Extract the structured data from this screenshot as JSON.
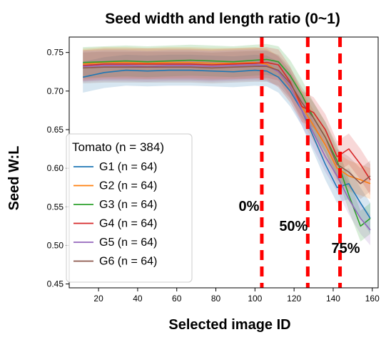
{
  "chart_data": {
    "type": "line",
    "title": "Seed width and length ratio (0~1)",
    "xlabel": "Selected image ID",
    "ylabel": "Seed W:L",
    "xlim": [
      5,
      163
    ],
    "ylim": [
      0.445,
      0.77
    ],
    "xticks": [
      20,
      40,
      60,
      80,
      100,
      120,
      140,
      160
    ],
    "yticks": [
      0.45,
      0.5,
      0.55,
      0.6,
      0.65,
      0.7,
      0.75
    ],
    "legend_title": "Tomato (n = 384)",
    "legend_position": "lower-left",
    "x": [
      12,
      23,
      34,
      45,
      56,
      67,
      78,
      89,
      100,
      106,
      112,
      118,
      124,
      130,
      136,
      142,
      148,
      154,
      159
    ],
    "series": [
      {
        "name": "G1 (n = 64)",
        "color": "#1f77b4",
        "values": [
          0.718,
          0.724,
          0.727,
          0.726,
          0.727,
          0.727,
          0.726,
          0.725,
          0.727,
          0.726,
          0.718,
          0.7,
          0.675,
          0.64,
          0.605,
          0.575,
          0.58,
          0.555,
          0.535
        ],
        "band": 0.02
      },
      {
        "name": "G2 (n = 64)",
        "color": "#ff7f0e",
        "values": [
          0.735,
          0.737,
          0.737,
          0.736,
          0.737,
          0.737,
          0.736,
          0.736,
          0.737,
          0.735,
          0.725,
          0.705,
          0.68,
          0.655,
          0.63,
          0.6,
          0.59,
          0.585,
          0.58
        ],
        "band": 0.02
      },
      {
        "name": "G3 (n = 64)",
        "color": "#2ca02c",
        "values": [
          0.737,
          0.738,
          0.739,
          0.738,
          0.739,
          0.74,
          0.739,
          0.738,
          0.74,
          0.741,
          0.738,
          0.72,
          0.695,
          0.665,
          0.64,
          0.61,
          0.565,
          0.525,
          0.535
        ],
        "band": 0.02
      },
      {
        "name": "G4 (n = 64)",
        "color": "#d62728",
        "values": [
          0.733,
          0.735,
          0.735,
          0.735,
          0.735,
          0.735,
          0.734,
          0.735,
          0.736,
          0.737,
          0.734,
          0.712,
          0.68,
          0.672,
          0.65,
          0.615,
          0.625,
          0.605,
          0.585
        ],
        "band": 0.02
      },
      {
        "name": "G5 (n = 64)",
        "color": "#9467bd",
        "values": [
          0.732,
          0.733,
          0.733,
          0.732,
          0.733,
          0.733,
          0.732,
          0.733,
          0.734,
          0.733,
          0.725,
          0.706,
          0.675,
          0.645,
          0.615,
          0.59,
          0.56,
          0.535,
          0.52
        ],
        "band": 0.02
      },
      {
        "name": "G6 (n = 64)",
        "color": "#8c564b",
        "values": [
          0.73,
          0.731,
          0.731,
          0.731,
          0.731,
          0.731,
          0.73,
          0.731,
          0.732,
          0.732,
          0.727,
          0.71,
          0.685,
          0.665,
          0.64,
          0.605,
          0.595,
          0.58,
          0.59
        ],
        "band": 0.02
      }
    ],
    "vlines": [
      {
        "x": 103.5,
        "label": "0%",
        "color": "#ff0000"
      },
      {
        "x": 127,
        "label": "50%",
        "color": "#ff0000"
      },
      {
        "x": 143.5,
        "label": "75%",
        "color": "#ff0000"
      }
    ],
    "grid": false
  }
}
